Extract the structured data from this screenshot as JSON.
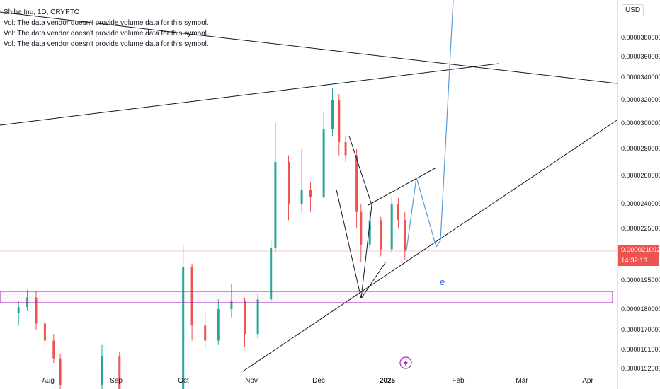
{
  "header": {
    "symbol_line": "Shiba Inu, 1D, CRYPTO",
    "vol_lines": [
      "Vol: The data vendor doesn't provide volume data for this symbol.",
      "Vol: The data vendor doesn't provide volume data for this symbol.",
      "Vol: The data vendor doesn't provide volume data for this symbol."
    ]
  },
  "price_axis": {
    "currency": "USD",
    "current_price": "0.000021092",
    "countdown": "14:32:13"
  },
  "annotations": {
    "wave_label": "e"
  },
  "colors": {
    "up": "#26a69a",
    "down": "#ef5350",
    "trendline": "#131722",
    "projection": "#5b9bd5",
    "zone": "#9c27b0"
  },
  "chart_data": {
    "type": "candlestick",
    "symbol": "Shiba Inu",
    "interval": "1D",
    "y_ticks": [
      3.8e-05,
      3.6e-05,
      3.4e-05,
      3.2e-05,
      3e-05,
      2.8e-05,
      2.6e-05,
      2.4e-05,
      2.25e-05,
      2.1092e-05,
      1.95e-05,
      1.8e-05,
      1.7e-05,
      1.61e-05,
      1.525e-05
    ],
    "y_tick_labels": [
      "0.0000380000",
      "0.0000360000",
      "0.0000340000",
      "0.0000320000",
      "0.0000300000",
      "0.0000280000",
      "0.0000260000",
      "0.0000240000",
      "0.0000225000",
      "0.000021092",
      "0.0000195000",
      "0.0000180000",
      "0.0000170000",
      "0.0000161000",
      "0.0000152500"
    ],
    "x_labels": [
      "Aug",
      "Sep",
      "Oct",
      "Nov",
      "Dec",
      "2025",
      "Feb",
      "Mar",
      "Apr"
    ],
    "current_price": 2.1092e-05,
    "series": [
      {
        "date": "2024-07-17",
        "o": 17.8,
        "h": 18.4,
        "l": 17.2,
        "c": 18.1
      },
      {
        "date": "2024-07-21",
        "o": 18.1,
        "h": 19.0,
        "l": 17.9,
        "c": 18.6
      },
      {
        "date": "2024-07-25",
        "o": 18.6,
        "h": 18.9,
        "l": 17.0,
        "c": 17.3
      },
      {
        "date": "2024-07-29",
        "o": 17.3,
        "h": 17.6,
        "l": 16.2,
        "c": 16.5
      },
      {
        "date": "2024-08-02",
        "o": 16.5,
        "h": 16.8,
        "l": 15.5,
        "c": 15.7
      },
      {
        "date": "2024-08-05",
        "o": 15.7,
        "h": 15.9,
        "l": 13.5,
        "c": 14.5
      },
      {
        "date": "2024-08-24",
        "o": 14.5,
        "h": 16.3,
        "l": 14.3,
        "c": 15.8
      },
      {
        "date": "2024-09-01",
        "o": 15.8,
        "h": 16.0,
        "l": 13.8,
        "c": 14.0
      },
      {
        "date": "2024-09-30",
        "o": 14.0,
        "h": 21.5,
        "l": 13.9,
        "c": 20.2
      },
      {
        "date": "2024-10-04",
        "o": 20.2,
        "h": 20.4,
        "l": 16.5,
        "c": 17.2
      },
      {
        "date": "2024-10-10",
        "o": 17.2,
        "h": 17.8,
        "l": 16.1,
        "c": 16.5
      },
      {
        "date": "2024-10-16",
        "o": 16.5,
        "h": 18.5,
        "l": 16.3,
        "c": 18.0
      },
      {
        "date": "2024-10-22",
        "o": 18.0,
        "h": 19.3,
        "l": 17.6,
        "c": 18.4
      },
      {
        "date": "2024-10-28",
        "o": 18.4,
        "h": 18.6,
        "l": 16.2,
        "c": 16.8
      },
      {
        "date": "2024-11-03",
        "o": 16.8,
        "h": 18.8,
        "l": 16.6,
        "c": 18.5
      },
      {
        "date": "2024-11-09",
        "o": 18.5,
        "h": 21.8,
        "l": 18.3,
        "c": 21.3
      },
      {
        "date": "2024-11-11",
        "o": 21.3,
        "h": 30.0,
        "l": 21.0,
        "c": 27.0
      },
      {
        "date": "2024-11-17",
        "o": 27.0,
        "h": 27.5,
        "l": 23.0,
        "c": 24.0
      },
      {
        "date": "2024-11-23",
        "o": 24.0,
        "h": 28.0,
        "l": 23.5,
        "c": 25.0
      },
      {
        "date": "2024-11-27",
        "o": 25.0,
        "h": 25.5,
        "l": 23.5,
        "c": 24.5
      },
      {
        "date": "2024-12-03",
        "o": 24.5,
        "h": 31.0,
        "l": 24.3,
        "c": 29.5
      },
      {
        "date": "2024-12-07",
        "o": 29.5,
        "h": 33.0,
        "l": 29.0,
        "c": 32.0
      },
      {
        "date": "2024-12-10",
        "o": 32.0,
        "h": 32.5,
        "l": 27.5,
        "c": 28.5
      },
      {
        "date": "2024-12-13",
        "o": 28.5,
        "h": 29.0,
        "l": 27.0,
        "c": 27.5
      },
      {
        "date": "2024-12-18",
        "o": 27.5,
        "h": 28.0,
        "l": 22.5,
        "c": 23.5
      },
      {
        "date": "2024-12-20",
        "o": 23.5,
        "h": 24.0,
        "l": 20.5,
        "c": 21.5
      },
      {
        "date": "2024-12-24",
        "o": 21.5,
        "h": 23.5,
        "l": 21.2,
        "c": 23.0
      },
      {
        "date": "2024-12-29",
        "o": 23.0,
        "h": 23.2,
        "l": 20.8,
        "c": 21.2
      },
      {
        "date": "2025-01-03",
        "o": 21.2,
        "h": 24.5,
        "l": 21.0,
        "c": 24.0
      },
      {
        "date": "2025-01-06",
        "o": 24.0,
        "h": 24.4,
        "l": 22.5,
        "c": 23.0
      },
      {
        "date": "2025-01-09",
        "o": 23.0,
        "h": 23.5,
        "l": 20.6,
        "c": 21.1
      }
    ]
  }
}
